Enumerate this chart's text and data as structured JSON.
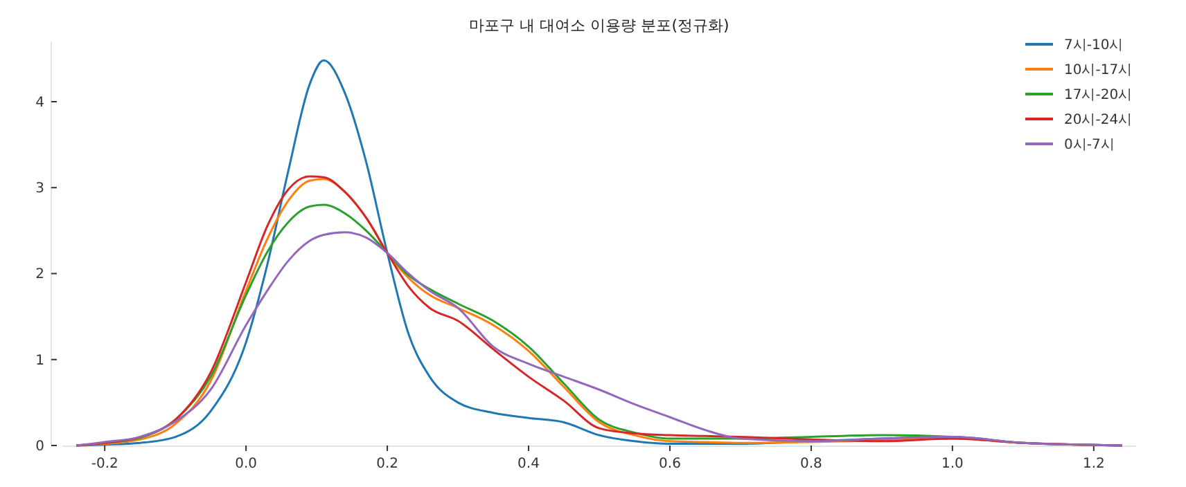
{
  "chart_data": {
    "type": "line",
    "title": "마포구 내 대여소 이용량 분포(정규화)",
    "x": [
      -0.24,
      -0.2,
      -0.15,
      -0.1,
      -0.05,
      0,
      0.03,
      0.06,
      0.09,
      0.11,
      0.14,
      0.17,
      0.2,
      0.23,
      0.26,
      0.3,
      0.35,
      0.4,
      0.45,
      0.5,
      0.55,
      0.6,
      0.65,
      0.7,
      0.8,
      0.9,
      1.0,
      1.1,
      1.24
    ],
    "series": [
      {
        "name": "7시-10시",
        "color": "#1f77b4",
        "values": [
          0,
          0.01,
          0.03,
          0.1,
          0.4,
          1.2,
          2.1,
          3.2,
          4.2,
          4.48,
          4.1,
          3.3,
          2.24,
          1.3,
          0.8,
          0.5,
          0.38,
          0.32,
          0.27,
          0.12,
          0.05,
          0.02,
          0.02,
          0.02,
          0.05,
          0.08,
          0.1,
          0.03,
          0
        ]
      },
      {
        "name": "10시-17시",
        "color": "#ff7f0e",
        "values": [
          0,
          0.02,
          0.07,
          0.25,
          0.75,
          1.8,
          2.4,
          2.85,
          3.08,
          3.1,
          2.95,
          2.65,
          2.24,
          1.95,
          1.75,
          1.6,
          1.4,
          1.1,
          0.68,
          0.27,
          0.12,
          0.05,
          0.04,
          0.03,
          0.04,
          0.06,
          0.08,
          0.03,
          0
        ]
      },
      {
        "name": "17시-20시",
        "color": "#2ca02c",
        "values": [
          0,
          0.03,
          0.09,
          0.3,
          0.8,
          1.75,
          2.25,
          2.6,
          2.78,
          2.8,
          2.7,
          2.5,
          2.24,
          1.98,
          1.82,
          1.65,
          1.45,
          1.15,
          0.72,
          0.3,
          0.15,
          0.08,
          0.08,
          0.08,
          0.1,
          0.12,
          0.1,
          0.03,
          0
        ]
      },
      {
        "name": "20시-24시",
        "color": "#d62728",
        "values": [
          0,
          0.03,
          0.1,
          0.3,
          0.85,
          1.9,
          2.55,
          2.98,
          3.13,
          3.12,
          2.95,
          2.65,
          2.24,
          1.85,
          1.6,
          1.45,
          1.12,
          0.8,
          0.52,
          0.2,
          0.14,
          0.12,
          0.11,
          0.1,
          0.07,
          0.05,
          0.08,
          0.03,
          0
        ]
      },
      {
        "name": "0시-7시",
        "color": "#9467bd",
        "values": [
          0,
          0.04,
          0.1,
          0.28,
          0.65,
          1.4,
          1.8,
          2.15,
          2.38,
          2.45,
          2.48,
          2.42,
          2.24,
          2.0,
          1.8,
          1.6,
          1.15,
          0.95,
          0.8,
          0.65,
          0.48,
          0.33,
          0.18,
          0.08,
          0.05,
          0.08,
          0.1,
          0.03,
          0
        ]
      }
    ],
    "xlim": [
      -0.26,
      1.26
    ],
    "ylim": [
      0,
      4.7
    ],
    "xticks": [
      {
        "value": -0.2,
        "label": "-0.2"
      },
      {
        "value": 0,
        "label": "0.0"
      },
      0.2,
      0.4,
      0.6,
      0.8,
      {
        "value": 1,
        "label": "1.0"
      },
      1.2
    ],
    "yticks": [
      0,
      1,
      2,
      3,
      4
    ],
    "grid": false,
    "legend": "top right",
    "marker": "none",
    "line_style": "solid"
  }
}
